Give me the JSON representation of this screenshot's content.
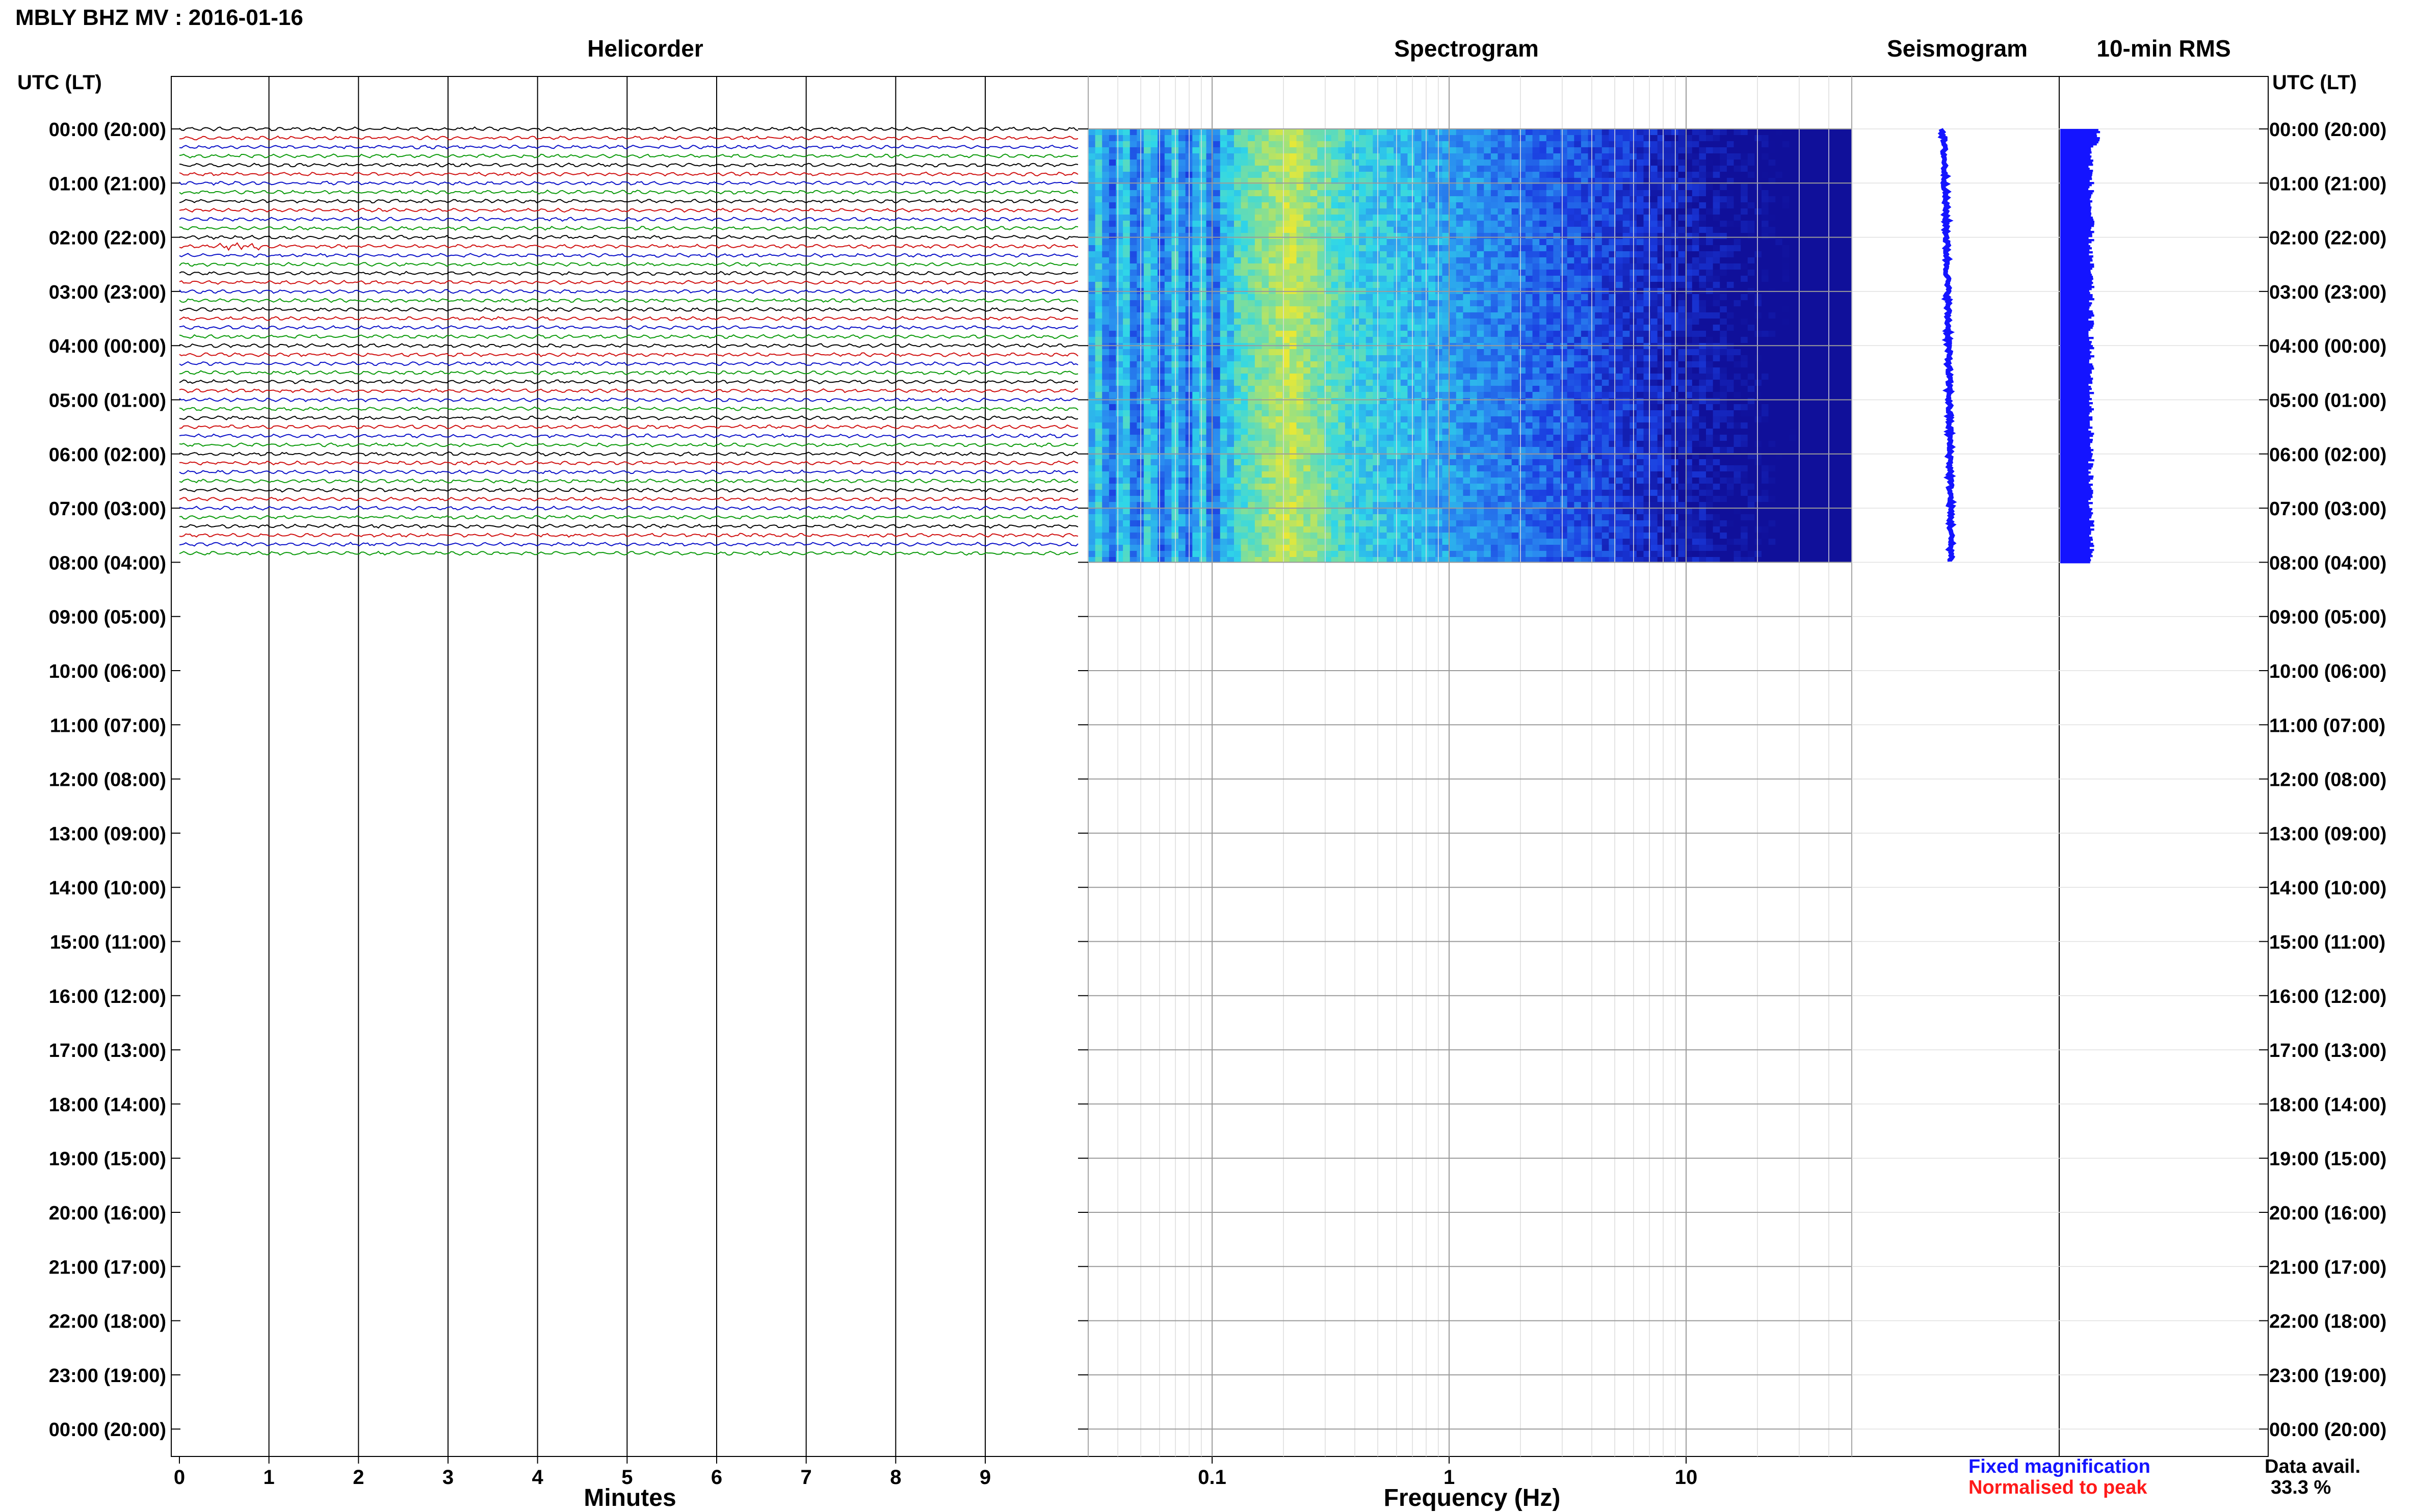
{
  "title": "MBLY BHZ MV : 2016-01-16",
  "panels": {
    "helicorder": "Helicorder",
    "spectrogram": "Spectrogram",
    "seismogram": "Seismogram",
    "rms": "10-min RMS"
  },
  "time_axis_header": "UTC (LT)",
  "time_labels": [
    "00:00 (20:00)",
    "01:00 (21:00)",
    "02:00 (22:00)",
    "03:00 (23:00)",
    "04:00 (00:00)",
    "05:00 (01:00)",
    "06:00 (02:00)",
    "07:00 (03:00)",
    "08:00 (04:00)",
    "09:00 (05:00)",
    "10:00 (06:00)",
    "11:00 (07:00)",
    "12:00 (08:00)",
    "13:00 (09:00)",
    "14:00 (10:00)",
    "15:00 (11:00)",
    "16:00 (12:00)",
    "17:00 (13:00)",
    "18:00 (14:00)",
    "19:00 (15:00)",
    "20:00 (16:00)",
    "21:00 (17:00)",
    "22:00 (18:00)",
    "23:00 (19:00)",
    "00:00 (20:00)"
  ],
  "colors": {
    "trace_cycle": [
      "#000000",
      "#d01010",
      "#0a10c8",
      "#0b9a0b"
    ],
    "fixed_magnification": "#1414ff",
    "normalised_to_peak": "#ff1a1a",
    "spectrogram_scale": [
      "#10109a",
      "#1a3ce0",
      "#2a8cf0",
      "#2fd7e8",
      "#8fe08a",
      "#e8e836"
    ]
  },
  "legend": {
    "fixed": "Fixed magnification",
    "normalised": "Normalised to peak"
  },
  "data_availability": {
    "label": "Data avail.",
    "value": "33.3 %"
  },
  "chart_data": [
    {
      "type": "line",
      "title": "Helicorder",
      "xlabel": "Minutes",
      "ylabel": "UTC (LT)",
      "x_ticks": [
        0,
        1,
        2,
        3,
        4,
        5,
        6,
        7,
        8,
        9
      ],
      "xlim": [
        0,
        10
      ],
      "ylim_hours": [
        0,
        24
      ],
      "row_duration_minutes": 10,
      "rows_with_data": 48,
      "data_end_hour": 8,
      "series_note_colors": "rows cycle black, red, blue, green"
    },
    {
      "type": "heatmap",
      "title": "Spectrogram",
      "xlabel": "Frequency (Hz)",
      "x_scale": "log",
      "x_ticks": [
        0.1,
        1,
        10
      ],
      "xlim": [
        0.03,
        50
      ],
      "ylim_hours": [
        0,
        24
      ],
      "data_end_hour": 8,
      "peak_band_hz": [
        0.12,
        0.35
      ]
    },
    {
      "type": "line",
      "title": "Seismogram",
      "ylim_hours": [
        0,
        24
      ],
      "data_end_hour": 8
    },
    {
      "type": "bar",
      "title": "10-min RMS",
      "ylim_hours": [
        0,
        24
      ],
      "data_end_hour": 8
    }
  ]
}
